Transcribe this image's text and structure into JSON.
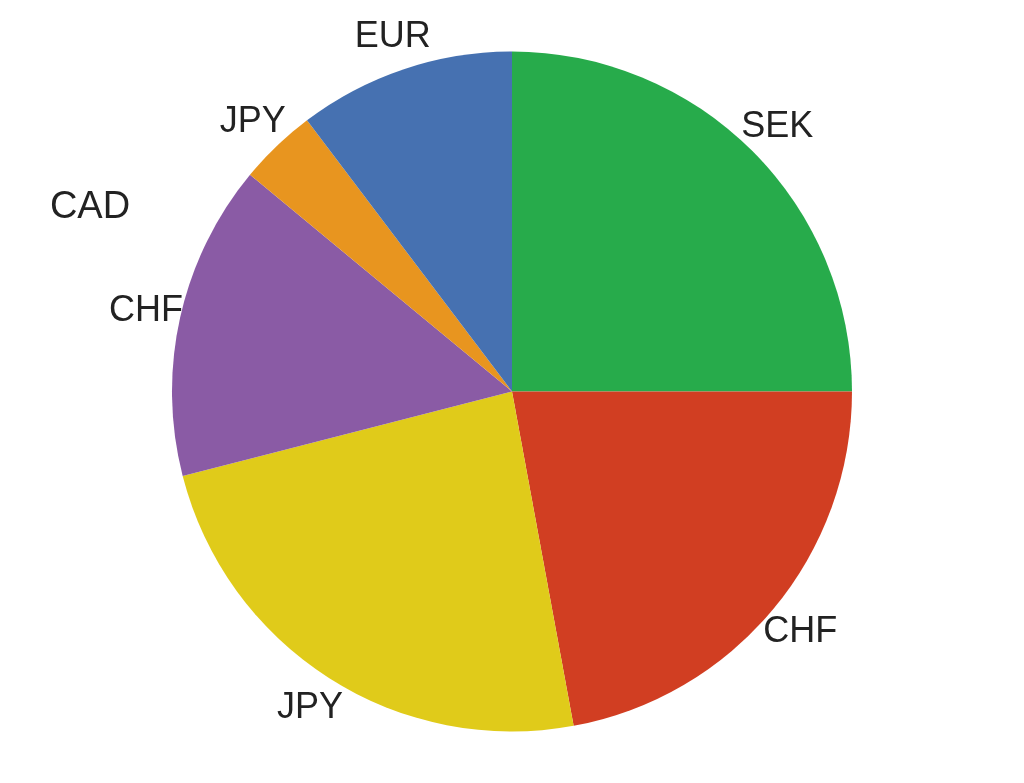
{
  "chart_data": {
    "type": "pie",
    "categories": [
      "SEK",
      "CHF",
      "JPY",
      "CHF",
      "JPY",
      "EUR"
    ],
    "values": [
      25.0,
      22.1,
      23.9,
      15.0,
      3.7,
      10.3
    ],
    "colors": [
      "#27ab4b",
      "#d13e22",
      "#e0cb1a",
      "#8a5ba5",
      "#e8951f",
      "#4671b1"
    ],
    "annotations": [
      "CAD"
    ]
  }
}
